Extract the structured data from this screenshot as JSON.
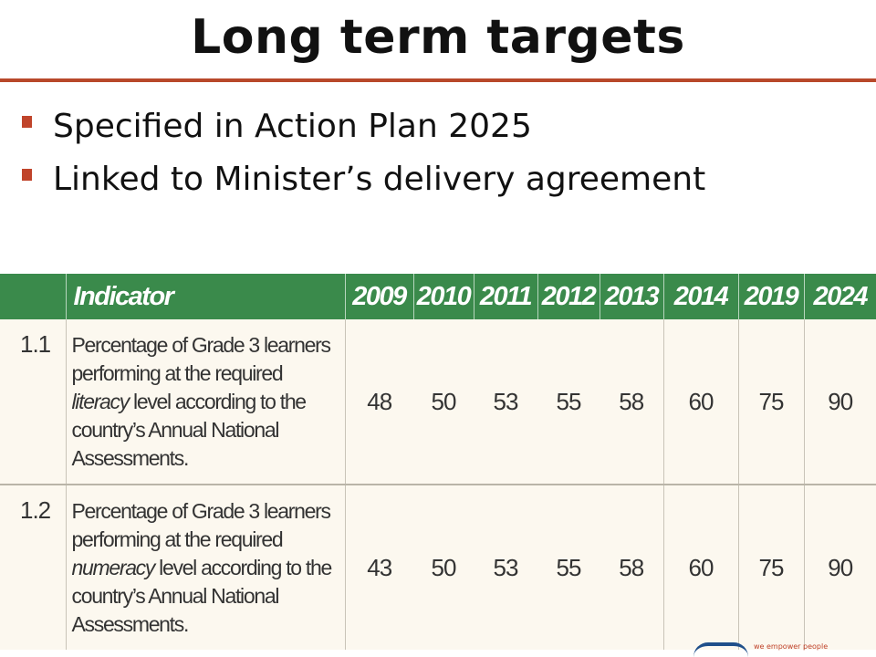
{
  "title": "Long term targets",
  "bullets": [
    "Specified in Action Plan 2025",
    "Linked to Minister’s delivery agreement"
  ],
  "table": {
    "id_header": "",
    "indicator_header": "Indicator",
    "years": [
      "2009",
      "2010",
      "2011",
      "2012",
      "2013",
      "2014",
      "2019",
      "2024"
    ],
    "rows": [
      {
        "id": "1.1",
        "desc_before": "Percentage of Grade 3 learners performing at the required ",
        "desc_emphasis": "literacy",
        "desc_after": " level according to the country’s Annual National Assessments.",
        "values": [
          "48",
          "50",
          "53",
          "55",
          "58",
          "60",
          "75",
          "90"
        ]
      },
      {
        "id": "1.2",
        "desc_before": "Percentage of Grade 3 learners performing at the required ",
        "desc_emphasis": "numeracy",
        "desc_after": " level according to the country’s Annual National Assessments.",
        "values": [
          "43",
          "50",
          "53",
          "55",
          "58",
          "60",
          "75",
          "90"
        ]
      }
    ]
  },
  "footer": {
    "tagline": "we empower people"
  },
  "colors": {
    "title_rule": "#b8482a",
    "bullet": "#c0442b",
    "header_bg": "#3a8a4b",
    "row_bg": "#fcf8ef"
  }
}
